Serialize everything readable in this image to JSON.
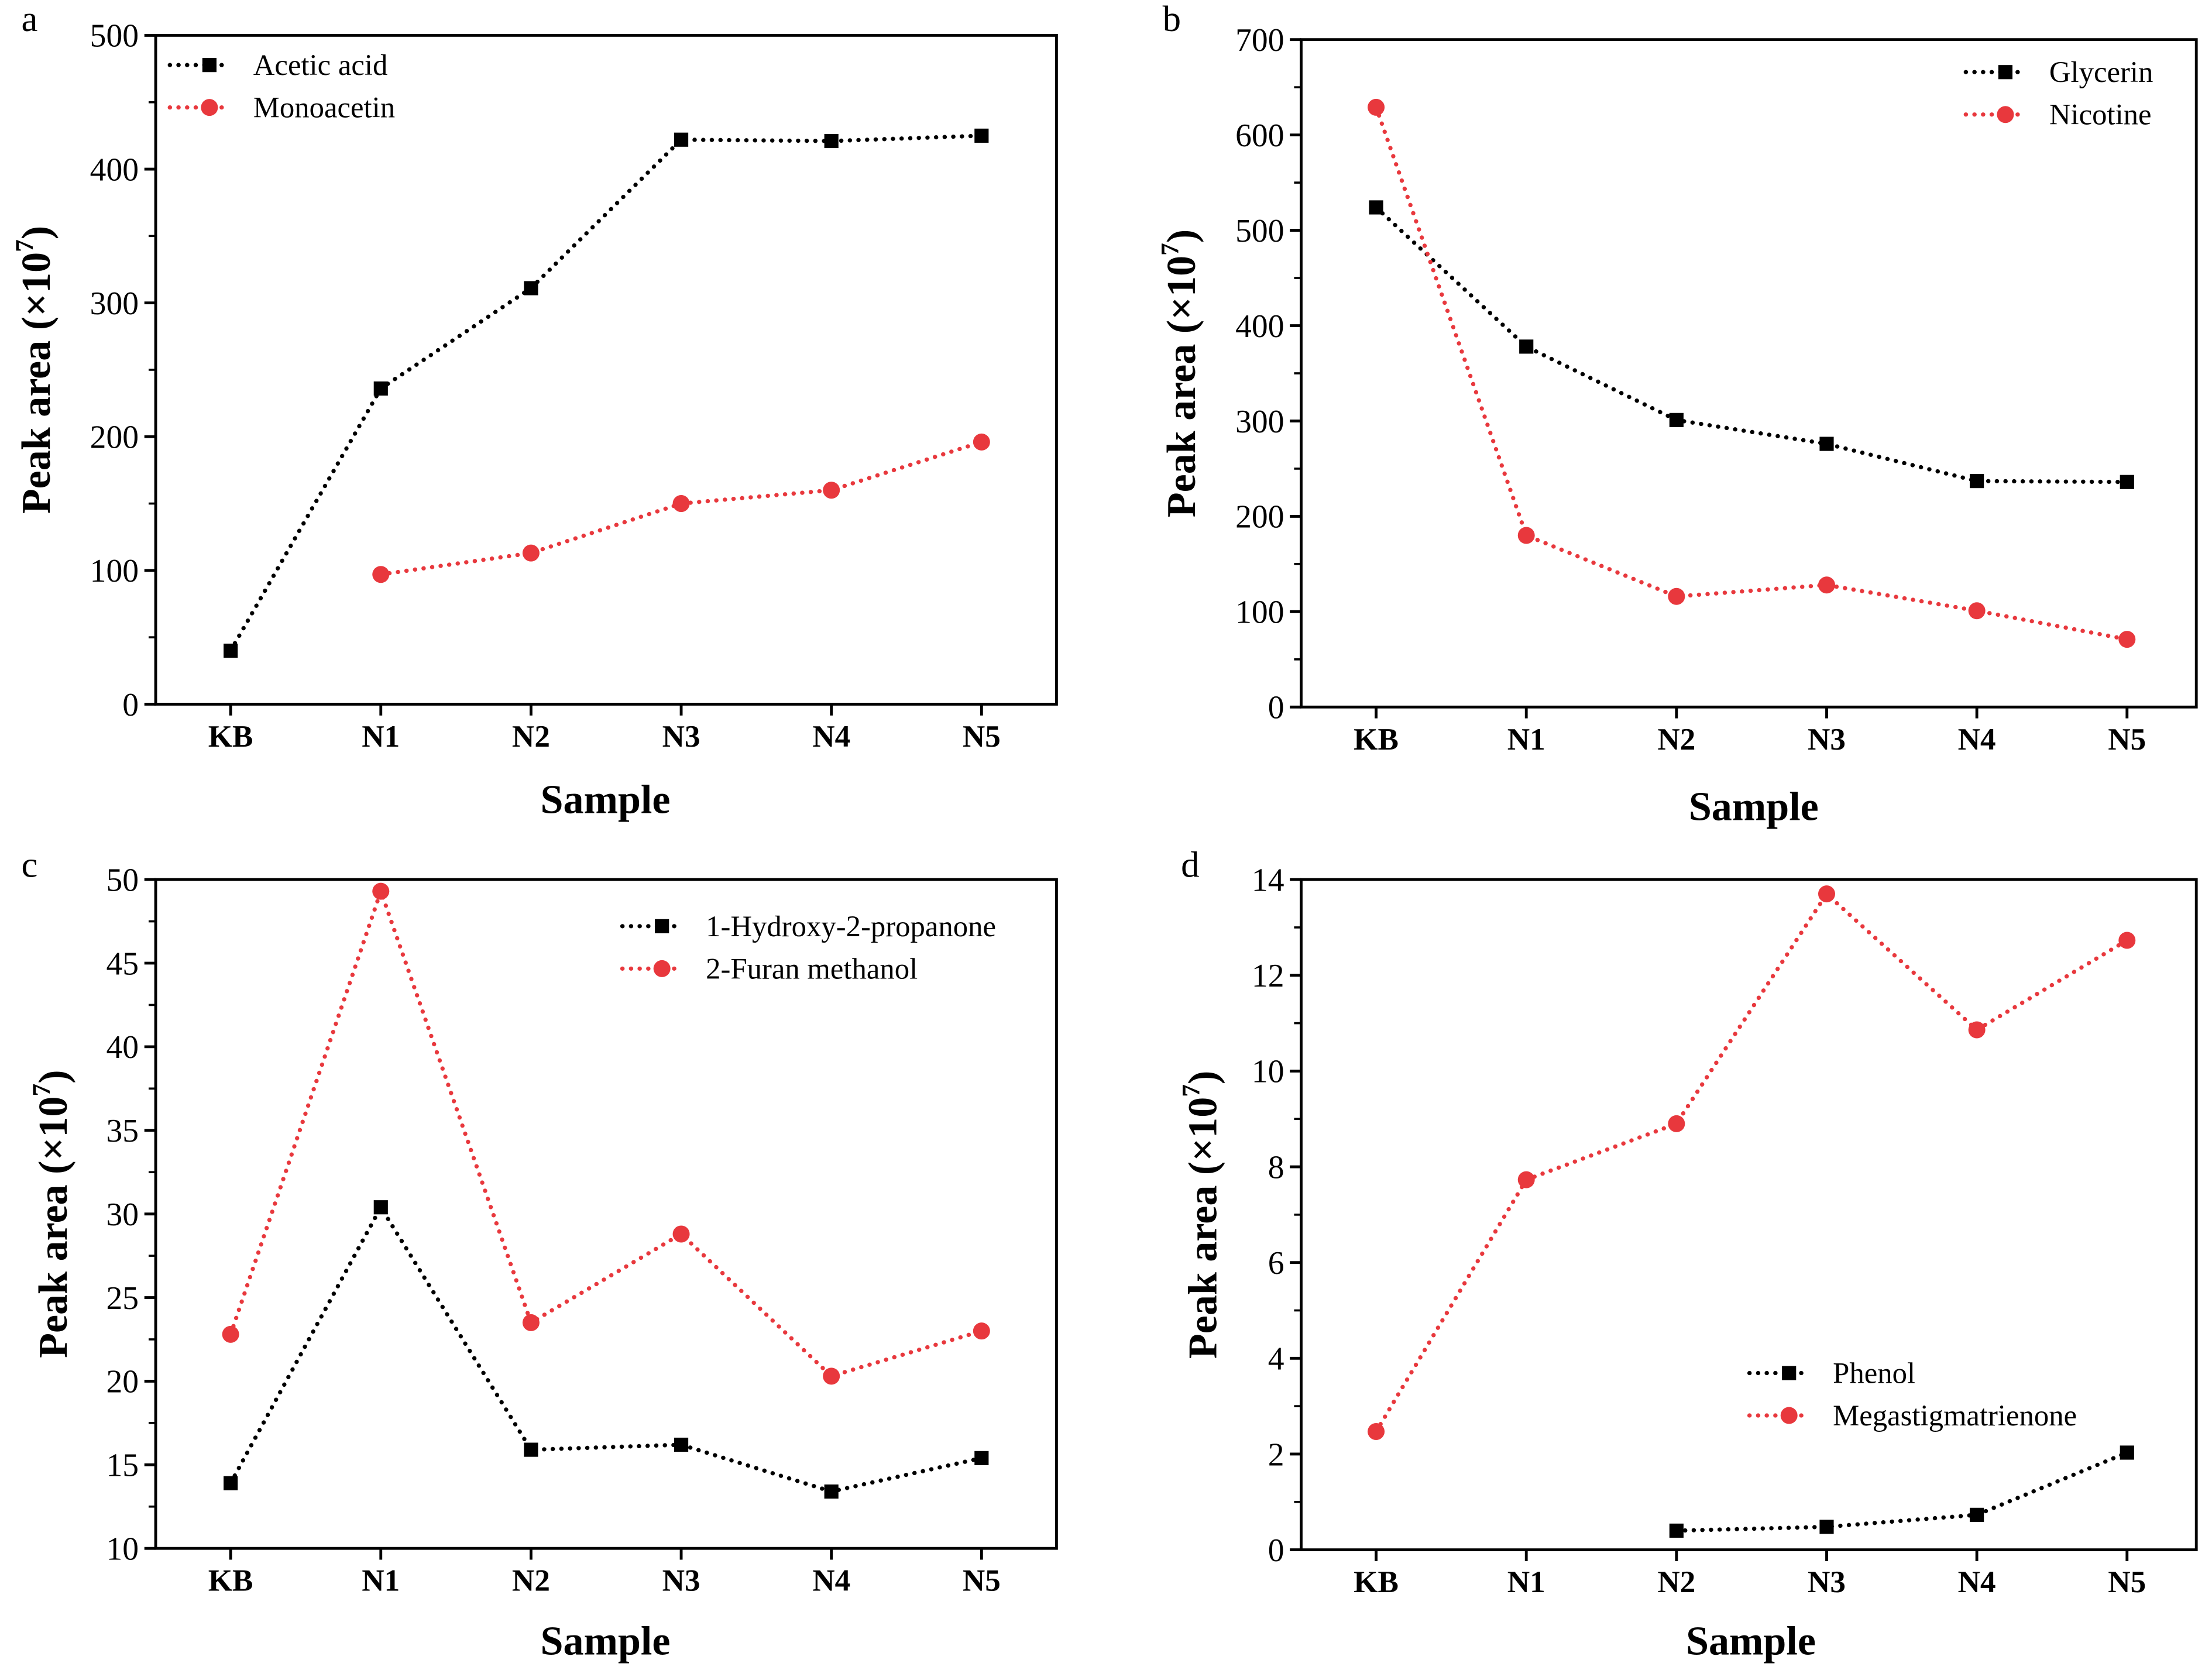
{
  "colors": {
    "series_black": "#000000",
    "series_red": "#e8383d",
    "axis": "#000000"
  },
  "chart_data": [
    {
      "panel": "a",
      "type": "line",
      "categories": [
        "KB",
        "N1",
        "N2",
        "N3",
        "N4",
        "N5"
      ],
      "xlabel": "Sample",
      "ylabel": "Peak area (×10",
      "ylabel_exp": "7",
      "ylabel_close": ")",
      "ylim": [
        0,
        500
      ],
      "yticks": [
        0,
        100,
        200,
        300,
        400,
        500
      ],
      "legend": "top-left",
      "series": [
        {
          "name": "Acetic acid",
          "marker": "square",
          "color": "#000000",
          "values": [
            40,
            236,
            311,
            422,
            421,
            425
          ]
        },
        {
          "name": "Monoacetin",
          "marker": "circle",
          "color": "#e8383d",
          "values": [
            null,
            97,
            113,
            150,
            160,
            196
          ]
        }
      ]
    },
    {
      "panel": "b",
      "type": "line",
      "categories": [
        "KB",
        "N1",
        "N2",
        "N3",
        "N4",
        "N5"
      ],
      "xlabel": "Sample",
      "ylabel": "Peak area (×10",
      "ylabel_exp": "7",
      "ylabel_close": ")",
      "ylim": [
        0,
        700
      ],
      "yticks": [
        0,
        100,
        200,
        300,
        400,
        500,
        600,
        700
      ],
      "legend": "top-right",
      "series": [
        {
          "name": "Glycerin",
          "marker": "square",
          "color": "#000000",
          "values": [
            524,
            378,
            301,
            276,
            237,
            236
          ]
        },
        {
          "name": "Nicotine",
          "marker": "circle",
          "color": "#e8383d",
          "values": [
            629,
            180,
            116,
            128,
            101,
            71
          ]
        }
      ]
    },
    {
      "panel": "c",
      "type": "line",
      "categories": [
        "KB",
        "N1",
        "N2",
        "N3",
        "N4",
        "N5"
      ],
      "xlabel": "Sample",
      "ylabel": "Peak area (×10",
      "ylabel_exp": "7",
      "ylabel_close": ")",
      "ylim": [
        10,
        50
      ],
      "yticks": [
        10,
        15,
        20,
        25,
        30,
        35,
        40,
        45,
        50
      ],
      "legend": "top-right",
      "series": [
        {
          "name": "1-Hydroxy-2-propanone",
          "marker": "square",
          "color": "#000000",
          "values": [
            13.9,
            30.4,
            15.9,
            16.2,
            13.4,
            15.4
          ]
        },
        {
          "name": "2-Furan methanol",
          "marker": "circle",
          "color": "#e8383d",
          "values": [
            22.8,
            49.3,
            23.5,
            28.8,
            20.3,
            23.0
          ]
        }
      ]
    },
    {
      "panel": "d",
      "type": "line",
      "categories": [
        "KB",
        "N1",
        "N2",
        "N3",
        "N4",
        "N5"
      ],
      "xlabel": "Sample",
      "ylabel": "Peak area (×10",
      "ylabel_exp": "7",
      "ylabel_close": ")",
      "ylim": [
        0,
        14
      ],
      "yticks": [
        0,
        2,
        4,
        6,
        8,
        10,
        12,
        14
      ],
      "legend": "bottom-right",
      "series": [
        {
          "name": "Phenol",
          "marker": "square",
          "color": "#000000",
          "values": [
            null,
            null,
            0.4,
            0.48,
            0.73,
            2.03
          ]
        },
        {
          "name": "Megastigmatrienone",
          "marker": "circle",
          "color": "#e8383d",
          "values": [
            2.47,
            7.73,
            8.9,
            13.7,
            10.86,
            12.73
          ]
        }
      ]
    }
  ]
}
